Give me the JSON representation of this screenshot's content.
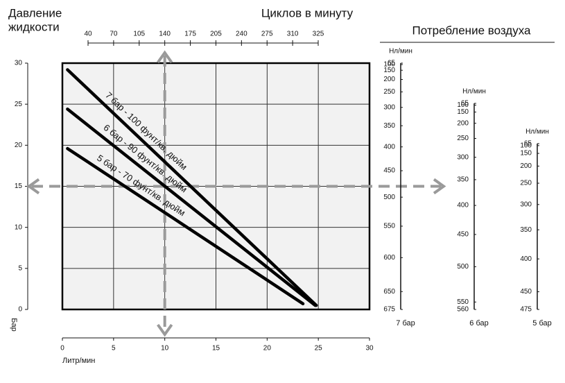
{
  "chart_data": {
    "type": "line",
    "y_title": [
      "Давление",
      "жидкости"
    ],
    "y_unit": "Бар",
    "x_label": "Литр/мин",
    "x2_title": "Циклов в минуту",
    "xlim": [
      0,
      30
    ],
    "xticks": [
      0,
      5,
      10,
      15,
      20,
      25,
      30
    ],
    "ylim": [
      0,
      30
    ],
    "yticks": [
      0,
      5,
      10,
      15,
      20,
      25,
      30
    ],
    "x2ticks": [
      40,
      70,
      105,
      140,
      175,
      205,
      240,
      275,
      310,
      325
    ],
    "grid": true,
    "series": [
      {
        "name": "7 бар - 100 фунт/кв. дюйм",
        "color": "#000000",
        "x": [
          0.5,
          24.8
        ],
        "values": [
          29.2,
          0.5
        ]
      },
      {
        "name": "6 бар - 90 фунт/кв. дюйм",
        "color": "#000000",
        "x": [
          0.5,
          24.7
        ],
        "values": [
          24.4,
          0.5
        ]
      },
      {
        "name": "5 бар - 70 фунт/кв. дюйм",
        "color": "#000000",
        "x": [
          0.5,
          23.5
        ],
        "values": [
          19.6,
          0.7
        ]
      }
    ],
    "air": {
      "title": "Потребление воздуха",
      "scales": [
        {
          "unit": "Нл/мин",
          "name": "7 бар",
          "ylim": [
            65,
            675
          ],
          "ticks": [
            65,
            100,
            150,
            200,
            250,
            300,
            350,
            400,
            450,
            500,
            550,
            600,
            650,
            675
          ]
        },
        {
          "unit": "Нл/мин",
          "name": "6 бар",
          "ylim": [
            65,
            560
          ],
          "ticks": [
            65,
            100,
            150,
            200,
            250,
            300,
            350,
            400,
            450,
            500,
            550,
            560
          ]
        },
        {
          "unit": "Нл/мин",
          "name": "5 бар",
          "ylim": [
            65,
            475
          ],
          "ticks": [
            65,
            100,
            150,
            200,
            250,
            300,
            350,
            400,
            450,
            475
          ]
        }
      ]
    }
  }
}
